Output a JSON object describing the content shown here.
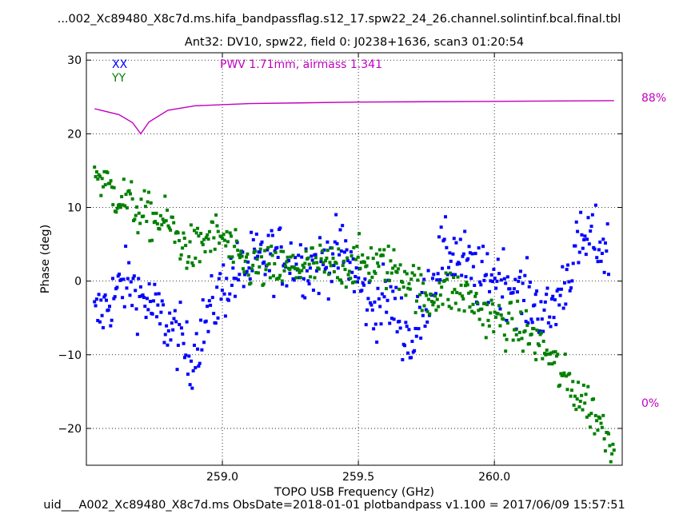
{
  "chart_data": {
    "type": "scatter",
    "title": "...002_Xc89480_X8c7d.ms.hifa_bandpassflag.s12_17.spw22_24_26.channel.solintinf.bcal.final.tbl",
    "subtitle": "Ant32: DV10,  spw22,  field 0: J0238+1636,  scan3  01:20:54",
    "xlabel": "TOPO USB Frequency (GHz)",
    "ylabel": "Phase (deg)",
    "footer": "uid___A002_Xc89480_X8c7d.ms  ObsDate=2018-01-01   plotbandpass v1.100 = 2017/06/09 15:57:51",
    "annotation": "PWV 1.71mm, airmass 1.341",
    "xlim": [
      258.5,
      260.47
    ],
    "ylim": [
      -25,
      31
    ],
    "xticks": [
      {
        "value": 259.0,
        "label": "259.0"
      },
      {
        "value": 259.5,
        "label": "259.5"
      },
      {
        "value": 260.0,
        "label": "260.0"
      }
    ],
    "yticks": [
      {
        "value": 30,
        "label": "30"
      },
      {
        "value": 20,
        "label": "20"
      },
      {
        "value": 10,
        "label": "10"
      },
      {
        "value": 0,
        "label": "0"
      },
      {
        "value": -10,
        "label": "−10"
      },
      {
        "value": -20,
        "label": "−20"
      }
    ],
    "grid": true,
    "legend_position": "top-left",
    "series": [
      {
        "name": "XX",
        "color": "#0000ff",
        "marker": "square",
        "curve": [
          [
            258.53,
            -5
          ],
          [
            258.56,
            -4
          ],
          [
            258.6,
            -2
          ],
          [
            258.65,
            0
          ],
          [
            258.7,
            -2
          ],
          [
            258.75,
            -4
          ],
          [
            258.8,
            -6
          ],
          [
            258.85,
            -8
          ],
          [
            258.88,
            -11
          ],
          [
            258.92,
            -7
          ],
          [
            258.96,
            -4
          ],
          [
            259.0,
            -1
          ],
          [
            259.05,
            1
          ],
          [
            259.1,
            2
          ],
          [
            259.15,
            3
          ],
          [
            259.2,
            3.5
          ],
          [
            259.25,
            3
          ],
          [
            259.3,
            2.5
          ],
          [
            259.35,
            2
          ],
          [
            259.4,
            3.5
          ],
          [
            259.45,
            4
          ],
          [
            259.5,
            0
          ],
          [
            259.55,
            -4
          ],
          [
            259.6,
            -2
          ],
          [
            259.65,
            -5
          ],
          [
            259.7,
            -9
          ],
          [
            259.72,
            -6
          ],
          [
            259.75,
            -2
          ],
          [
            259.8,
            3
          ],
          [
            259.85,
            4
          ],
          [
            259.9,
            2
          ],
          [
            259.95,
            0
          ],
          [
            260.0,
            1
          ],
          [
            260.05,
            0
          ],
          [
            260.1,
            -2
          ],
          [
            260.15,
            -3
          ],
          [
            260.2,
            -5
          ],
          [
            260.25,
            -1
          ],
          [
            260.3,
            4
          ],
          [
            260.35,
            6
          ],
          [
            260.42,
            4
          ]
        ],
        "scatter_deg": 2.2
      },
      {
        "name": "YY",
        "color": "#008000",
        "marker": "square",
        "curve": [
          [
            258.53,
            15
          ],
          [
            258.6,
            12
          ],
          [
            258.65,
            11
          ],
          [
            258.7,
            9
          ],
          [
            258.75,
            8.5
          ],
          [
            258.8,
            8
          ],
          [
            258.85,
            5
          ],
          [
            258.9,
            4
          ],
          [
            258.95,
            6
          ],
          [
            259.0,
            6
          ],
          [
            259.05,
            3
          ],
          [
            259.1,
            2
          ],
          [
            259.2,
            1.5
          ],
          [
            259.3,
            2
          ],
          [
            259.4,
            2
          ],
          [
            259.5,
            2.5
          ],
          [
            259.55,
            2.5
          ],
          [
            259.6,
            2
          ],
          [
            259.65,
            1.5
          ],
          [
            259.7,
            0
          ],
          [
            259.75,
            -3
          ],
          [
            259.8,
            -1
          ],
          [
            259.85,
            -1.5
          ],
          [
            259.9,
            -2
          ],
          [
            259.95,
            -4
          ],
          [
            260.0,
            -5
          ],
          [
            260.05,
            -6
          ],
          [
            260.1,
            -6.5
          ],
          [
            260.15,
            -8
          ],
          [
            260.2,
            -10
          ],
          [
            260.25,
            -13
          ],
          [
            260.3,
            -15
          ],
          [
            260.35,
            -17
          ],
          [
            260.4,
            -20
          ],
          [
            260.44,
            -22
          ]
        ],
        "scatter_deg": 1.6
      }
    ],
    "atmosphere": {
      "color": "#c000c0",
      "label_top": "88%",
      "label_bottom": "0%",
      "line_y": [
        [
          258.53,
          23.4
        ],
        [
          258.62,
          22.6
        ],
        [
          258.67,
          21.5
        ],
        [
          258.7,
          20.0
        ],
        [
          258.73,
          21.6
        ],
        [
          258.8,
          23.2
        ],
        [
          258.9,
          23.8
        ],
        [
          259.1,
          24.1
        ],
        [
          259.5,
          24.3
        ],
        [
          260.0,
          24.4
        ],
        [
          260.44,
          24.5
        ]
      ]
    }
  }
}
